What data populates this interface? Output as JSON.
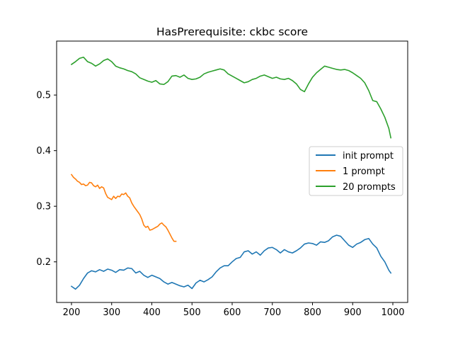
{
  "chart_data": {
    "type": "line",
    "title": "HasPrerequisite: ckbc score",
    "xlabel": "",
    "ylabel": "",
    "xlim": [
      163,
      1037
    ],
    "ylim": [
      0.127,
      0.597
    ],
    "xticks": [
      200,
      300,
      400,
      500,
      600,
      700,
      800,
      900,
      1000
    ],
    "yticks": [
      0.2,
      0.3,
      0.4,
      0.5
    ],
    "ytick_labels": [
      "0.2",
      "0.3",
      "0.4",
      "0.5"
    ],
    "grid": false,
    "legend_position": "center-right",
    "series": [
      {
        "name": "init prompt",
        "color": "#1f77b4",
        "x": [
          200,
          210,
          220,
          230,
          240,
          250,
          260,
          270,
          280,
          290,
          300,
          310,
          320,
          330,
          340,
          350,
          360,
          370,
          380,
          390,
          400,
          410,
          420,
          430,
          440,
          450,
          460,
          470,
          480,
          490,
          500,
          510,
          520,
          530,
          540,
          550,
          560,
          570,
          580,
          590,
          600,
          610,
          620,
          630,
          640,
          650,
          660,
          670,
          680,
          690,
          700,
          710,
          720,
          730,
          740,
          750,
          760,
          770,
          780,
          790,
          800,
          810,
          820,
          830,
          840,
          850,
          860,
          870,
          880,
          890,
          900,
          910,
          920,
          930,
          940,
          950,
          960,
          970,
          980,
          990,
          995
        ],
        "y": [
          0.156,
          0.151,
          0.158,
          0.17,
          0.18,
          0.184,
          0.182,
          0.186,
          0.183,
          0.187,
          0.185,
          0.181,
          0.186,
          0.185,
          0.189,
          0.188,
          0.18,
          0.183,
          0.176,
          0.172,
          0.176,
          0.173,
          0.17,
          0.164,
          0.16,
          0.163,
          0.16,
          0.157,
          0.155,
          0.158,
          0.152,
          0.162,
          0.167,
          0.164,
          0.168,
          0.173,
          0.182,
          0.189,
          0.193,
          0.193,
          0.2,
          0.206,
          0.208,
          0.218,
          0.22,
          0.214,
          0.218,
          0.212,
          0.22,
          0.225,
          0.226,
          0.222,
          0.216,
          0.222,
          0.218,
          0.216,
          0.22,
          0.225,
          0.232,
          0.234,
          0.233,
          0.23,
          0.236,
          0.235,
          0.238,
          0.245,
          0.248,
          0.246,
          0.238,
          0.23,
          0.226,
          0.232,
          0.235,
          0.24,
          0.242,
          0.232,
          0.225,
          0.21,
          0.2,
          0.185,
          0.18
        ]
      },
      {
        "name": "1 prompt",
        "color": "#ff7f0e",
        "x": [
          200,
          205,
          210,
          215,
          220,
          225,
          230,
          235,
          240,
          245,
          250,
          255,
          260,
          265,
          270,
          275,
          280,
          285,
          290,
          295,
          300,
          305,
          310,
          315,
          320,
          325,
          330,
          335,
          340,
          345,
          350,
          355,
          360,
          365,
          370,
          375,
          380,
          385,
          390,
          395,
          400,
          405,
          410,
          415,
          420,
          425,
          430,
          435,
          440,
          445,
          450,
          455,
          460
        ],
        "y": [
          0.357,
          0.352,
          0.349,
          0.345,
          0.343,
          0.339,
          0.34,
          0.337,
          0.338,
          0.343,
          0.342,
          0.337,
          0.335,
          0.338,
          0.332,
          0.335,
          0.333,
          0.323,
          0.316,
          0.314,
          0.312,
          0.318,
          0.314,
          0.318,
          0.317,
          0.322,
          0.321,
          0.324,
          0.318,
          0.315,
          0.306,
          0.3,
          0.295,
          0.29,
          0.285,
          0.277,
          0.266,
          0.262,
          0.264,
          0.257,
          0.258,
          0.26,
          0.262,
          0.264,
          0.268,
          0.27,
          0.266,
          0.263,
          0.257,
          0.25,
          0.243,
          0.237,
          0.237
        ]
      },
      {
        "name": "20 prompts",
        "color": "#2ca02c",
        "x": [
          200,
          210,
          220,
          230,
          240,
          250,
          260,
          270,
          280,
          290,
          300,
          310,
          320,
          330,
          340,
          350,
          360,
          370,
          380,
          390,
          400,
          410,
          420,
          430,
          440,
          450,
          460,
          470,
          480,
          490,
          500,
          510,
          520,
          530,
          540,
          550,
          560,
          570,
          580,
          590,
          600,
          610,
          620,
          630,
          640,
          650,
          660,
          670,
          680,
          690,
          700,
          710,
          720,
          730,
          740,
          750,
          760,
          770,
          780,
          790,
          800,
          810,
          820,
          830,
          840,
          850,
          860,
          870,
          880,
          890,
          900,
          910,
          920,
          930,
          940,
          950,
          960,
          970,
          980,
          990,
          995
        ],
        "y": [
          0.555,
          0.56,
          0.566,
          0.568,
          0.56,
          0.557,
          0.552,
          0.556,
          0.562,
          0.565,
          0.56,
          0.552,
          0.549,
          0.547,
          0.544,
          0.542,
          0.538,
          0.531,
          0.528,
          0.525,
          0.523,
          0.526,
          0.52,
          0.519,
          0.524,
          0.534,
          0.535,
          0.532,
          0.536,
          0.53,
          0.528,
          0.529,
          0.532,
          0.538,
          0.541,
          0.543,
          0.545,
          0.547,
          0.545,
          0.538,
          0.534,
          0.53,
          0.526,
          0.522,
          0.524,
          0.528,
          0.53,
          0.534,
          0.536,
          0.533,
          0.53,
          0.532,
          0.529,
          0.528,
          0.53,
          0.526,
          0.52,
          0.51,
          0.506,
          0.52,
          0.532,
          0.54,
          0.546,
          0.552,
          0.55,
          0.548,
          0.546,
          0.545,
          0.546,
          0.544,
          0.54,
          0.535,
          0.53,
          0.522,
          0.508,
          0.49,
          0.488,
          0.475,
          0.46,
          0.44,
          0.423
        ]
      }
    ]
  }
}
